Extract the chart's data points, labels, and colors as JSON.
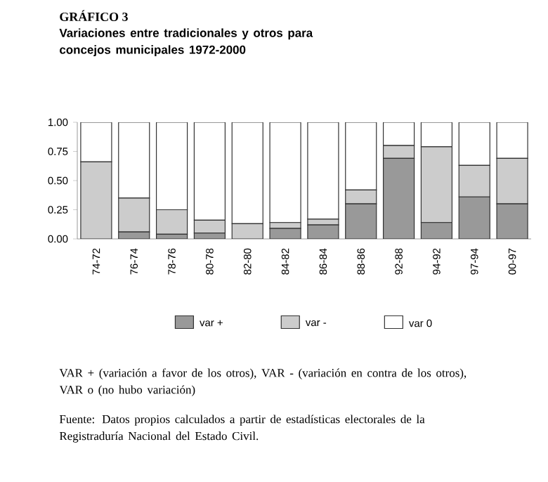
{
  "chart_data": {
    "type": "bar",
    "stacked": true,
    "title": "GRÁFICO 3",
    "subtitle": "Variaciones entre tradicionales y otros para concejos municipales 1972-2000",
    "categories": [
      "74-72",
      "76-74",
      "78-76",
      "80-78",
      "82-80",
      "84-82",
      "86-84",
      "88-86",
      "92-88",
      "94-92",
      "97-94",
      "00-97"
    ],
    "series": [
      {
        "name": "var +",
        "color": "#999999",
        "values": [
          0,
          0.06,
          0.04,
          0.05,
          0,
          0.09,
          0.12,
          0.3,
          0.69,
          0.14,
          0.36,
          0.3
        ]
      },
      {
        "name": "var -",
        "color": "#cccccc",
        "values": [
          0.66,
          0.29,
          0.21,
          0.11,
          0.13,
          0.05,
          0.05,
          0.12,
          0.11,
          0.65,
          0.27,
          0.39
        ]
      },
      {
        "name": "var  0",
        "color": "#ffffff",
        "values": [
          0.34,
          0.65,
          0.75,
          0.84,
          0.87,
          0.86,
          0.83,
          0.58,
          0.2,
          0.21,
          0.37,
          0.31
        ]
      }
    ],
    "ylim": [
      0,
      1
    ],
    "yticks": [
      {
        "value": 0,
        "label": "0.00"
      },
      {
        "value": 0.25,
        "label": "0.25"
      },
      {
        "value": 0.5,
        "label": "0.50"
      },
      {
        "value": 0.75,
        "label": "0.75"
      },
      {
        "value": 1,
        "label": "1.00"
      }
    ],
    "legend": "bottom",
    "annotations": [
      "VAR + (variación a favor de los otros), VAR - (variación en contra de los otros), VAR o (no hubo variación)",
      "Fuente: Datos propios calculados a partir de estadísticas electorales de la Registraduría Nacional del Estado Civil."
    ]
  }
}
